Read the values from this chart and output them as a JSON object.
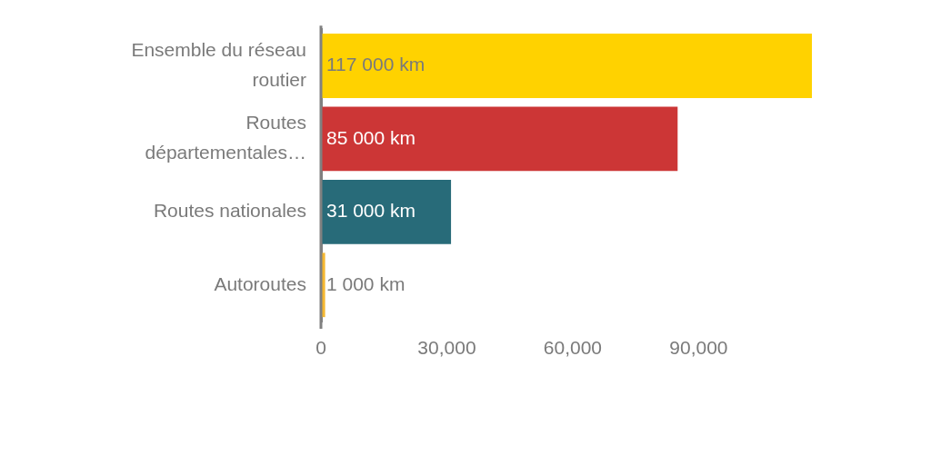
{
  "chart_data": {
    "type": "bar",
    "orientation": "horizontal",
    "categories": [
      "Ensemble du réseau routier",
      "Routes départementales…",
      "Routes nationales",
      "Autoroutes"
    ],
    "values": [
      117000,
      85000,
      31000,
      1000
    ],
    "colors": [
      "#ffd200",
      "#cc3636",
      "#286b79",
      "#f5b731"
    ],
    "value_labels": [
      "117 000 km",
      "85 000 km",
      "31 000 km",
      "1 000 km"
    ],
    "xlim": [
      0,
      117000
    ],
    "xticks": [
      0,
      {
        "value": 30000,
        "label": "30,000"
      },
      {
        "value": 60000,
        "label": "60,000"
      },
      {
        "value": 90000,
        "label": "90,000"
      }
    ]
  }
}
